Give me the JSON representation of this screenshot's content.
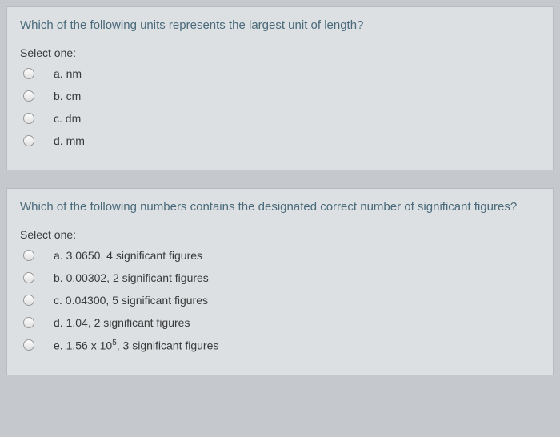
{
  "questions": [
    {
      "prompt": "Which of the following units represents the largest unit of length?",
      "select_label": "Select one:",
      "options": [
        {
          "letter": "a.",
          "text": "nm"
        },
        {
          "letter": "b.",
          "text": "cm"
        },
        {
          "letter": "c.",
          "text": "dm"
        },
        {
          "letter": "d.",
          "text": "mm"
        }
      ]
    },
    {
      "prompt": "Which of the following numbers contains the designated correct number of significant figures?",
      "select_label": "Select one:",
      "options": [
        {
          "letter": "a.",
          "text": "3.0650, 4 significant figures"
        },
        {
          "letter": "b.",
          "text": "0.00302, 2 significant figures"
        },
        {
          "letter": "c.",
          "text": "0.04300, 5 significant figures"
        },
        {
          "letter": "d.",
          "text": "1.04, 2 significant figures"
        },
        {
          "letter": "e.",
          "text": "1.56 x 10",
          "sup": "5",
          "tail": ", 3 significant figures"
        }
      ]
    }
  ],
  "colors": {
    "page_bg": "#c5c8cc",
    "block_bg": "#dce0e3",
    "question_color": "#4a6a7a",
    "text_color": "#3a3a3a"
  }
}
